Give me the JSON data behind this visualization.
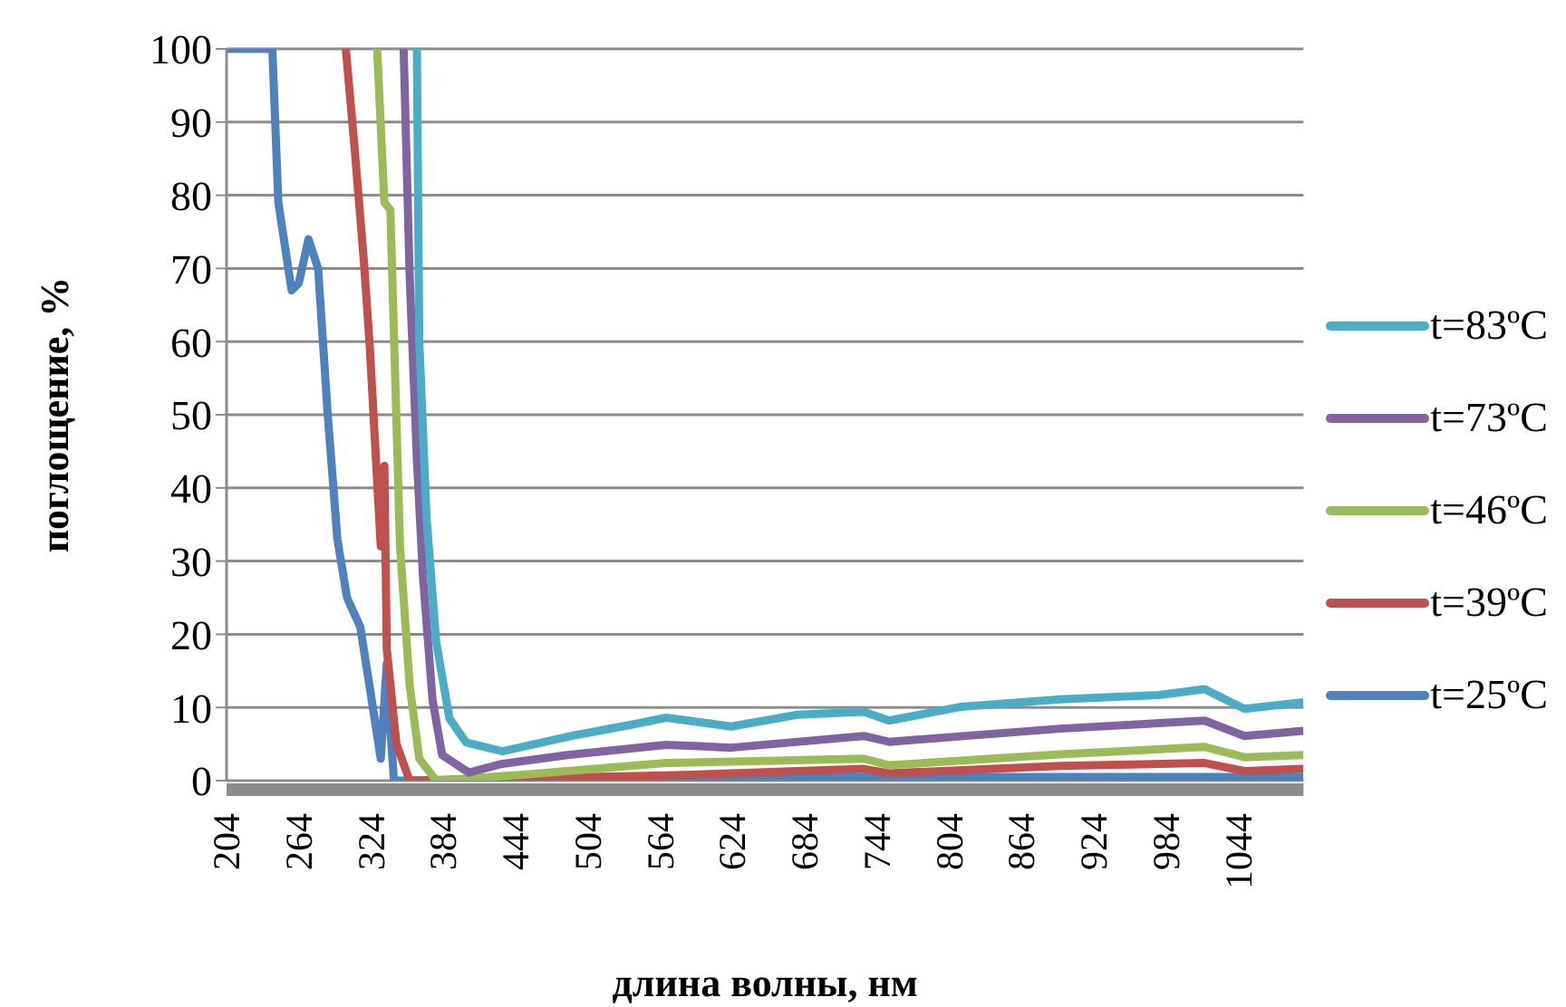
{
  "chart_data": {
    "type": "line",
    "xlabel": "длина волны, нм",
    "ylabel": "поглощение, %",
    "xlim": [
      204,
      1098
    ],
    "xticks": [
      204,
      264,
      324,
      384,
      444,
      504,
      564,
      624,
      684,
      744,
      804,
      864,
      924,
      984,
      1044
    ],
    "ylim": [
      0,
      100
    ],
    "yticks": [
      0,
      10,
      20,
      30,
      40,
      50,
      60,
      70,
      80,
      90,
      100
    ],
    "grid": "y",
    "legend": "right",
    "marker": "none",
    "line_style": "solid",
    "series": [
      {
        "name": "t=25ºC",
        "color": "#4f81bd",
        "x": [
          204,
          242,
          247,
          258,
          264,
          272,
          280,
          288,
          296,
          304,
          315,
          323,
          332,
          337,
          340,
          343,
          450,
          569,
          733,
          896,
          1016,
          1098
        ],
        "values": [
          100,
          100,
          79,
          67,
          68,
          74,
          70,
          50,
          33,
          25,
          21,
          12.6,
          3,
          16,
          7,
          0,
          0,
          0.3,
          0.5,
          0.5,
          0.5,
          0.5
        ]
      },
      {
        "name": "t=39ºC",
        "color": "#c0504d",
        "x": [
          303,
          310,
          318,
          323,
          332,
          335,
          337,
          345,
          356,
          450,
          569,
          733,
          754,
          896,
          1016,
          1049,
          1098
        ],
        "values": [
          100,
          87,
          71,
          59,
          32,
          43,
          18,
          5,
          0,
          0.3,
          0.7,
          1.6,
          1,
          2,
          2.4,
          1.3,
          1.6
        ]
      },
      {
        "name": "t=46ºC",
        "color": "#9bbb59",
        "x": [
          329,
          335,
          340,
          348,
          356,
          364,
          378,
          450,
          569,
          651,
          733,
          754,
          896,
          1016,
          1049,
          1098
        ],
        "values": [
          100,
          79,
          78,
          32,
          13,
          3,
          0,
          0.8,
          2.4,
          2.7,
          3,
          2.1,
          3.6,
          4.6,
          3.2,
          3.5
        ]
      },
      {
        "name": "t=73ºC",
        "color": "#8064a2",
        "x": [
          351,
          356,
          362,
          367,
          375,
          383,
          405,
          433,
          487,
          569,
          623,
          733,
          754,
          896,
          1016,
          1049,
          1098
        ],
        "values": [
          100,
          69,
          44,
          28,
          11,
          3.5,
          1.1,
          2.3,
          3.5,
          4.9,
          4.5,
          6.1,
          5.3,
          7.1,
          8.2,
          6.1,
          6.8
        ]
      },
      {
        "name": "t=83ºC",
        "color": "#4bacc6",
        "x": [
          362,
          364,
          370,
          378,
          389,
          403,
          433,
          487,
          542,
          569,
          623,
          678,
          733,
          754,
          814,
          896,
          978,
          1016,
          1033,
          1049,
          1098
        ],
        "values": [
          100,
          60,
          36,
          19,
          8.5,
          5.2,
          4,
          6,
          7.7,
          8.6,
          7.4,
          9,
          9.4,
          8.2,
          10.1,
          11.1,
          11.7,
          12.5,
          11.1,
          9.8,
          10.7
        ]
      }
    ]
  }
}
